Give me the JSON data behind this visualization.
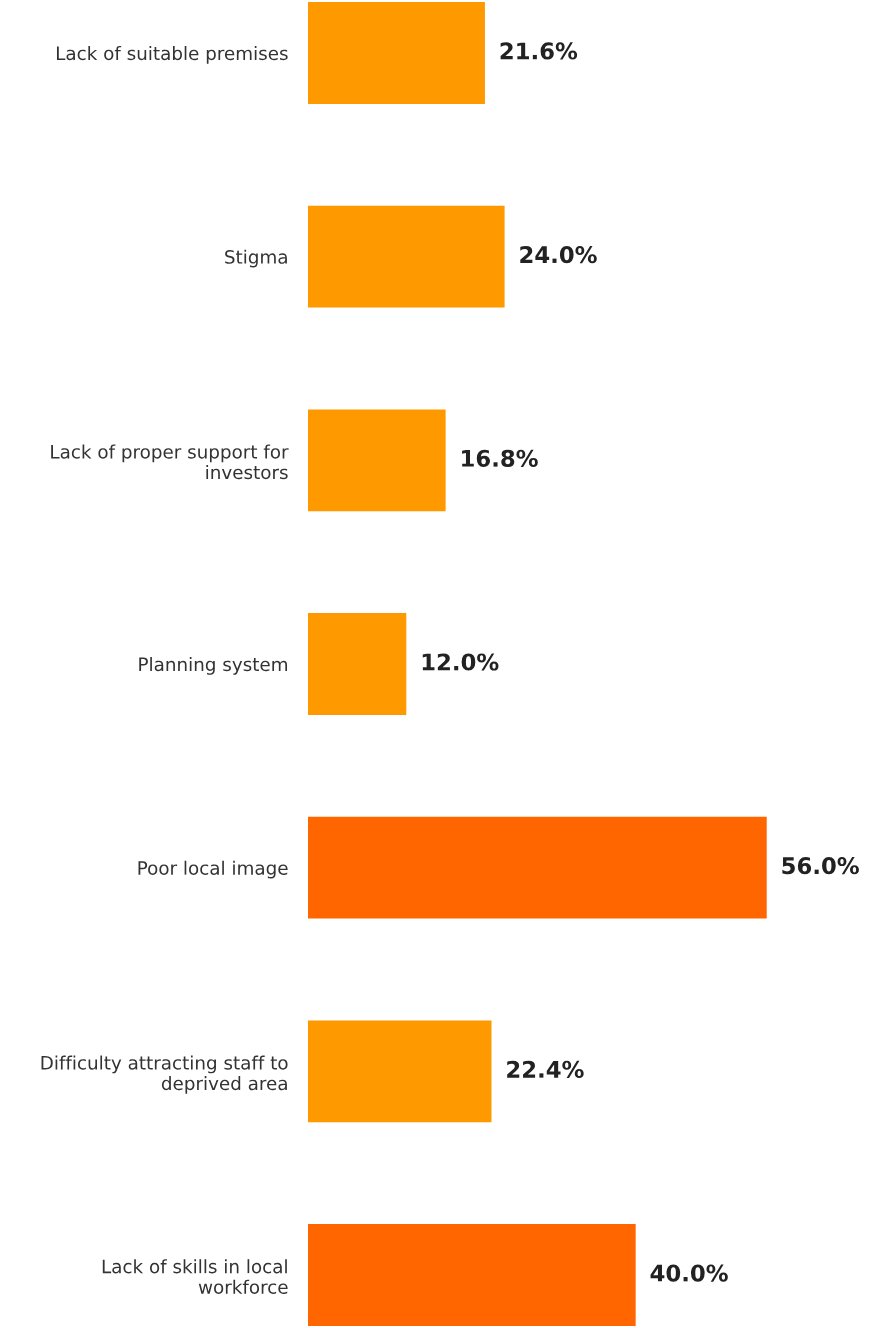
{
  "chart_data": {
    "type": "bar",
    "orientation": "horizontal",
    "categories": [
      "Lack of suitable premises",
      "Stigma",
      "Lack of proper support for\ninvestors",
      "Planning system",
      "Poor local image",
      "Difficulty attracting staff to\ndeprived area",
      "Lack of skills in local\nworkforce"
    ],
    "values": [
      21.6,
      24.0,
      16.8,
      12.0,
      56.0,
      22.4,
      40.0
    ],
    "colors": [
      "#ff9900",
      "#ff9900",
      "#ff9900",
      "#ff9900",
      "#ff6600",
      "#ff9900",
      "#ff6600"
    ],
    "value_labels": [
      "21.6%",
      "24.0%",
      "16.8%",
      "12.0%",
      "56.0%",
      "22.4%",
      "40.0%"
    ]
  }
}
